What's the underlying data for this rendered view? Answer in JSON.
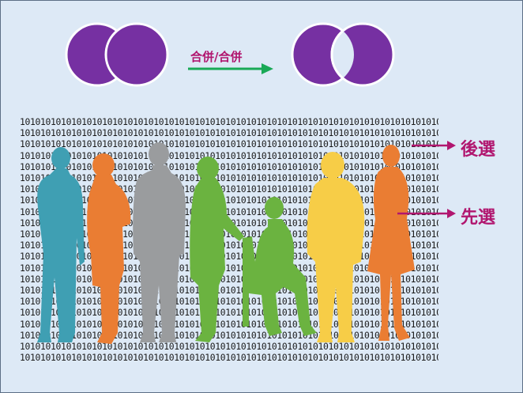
{
  "merge": {
    "label": "合併/合併"
  },
  "binary_row": "1010101010101010101010101010101010101010101010101010101010101010101010101010101010",
  "binary_rows": 22,
  "colors": {
    "circle_fill": "#7630a2",
    "circle_stroke": "#ffffff",
    "arrow_green": "#19a956",
    "label_magenta": "#b1166f",
    "background": "#dde9f6",
    "teal": "#3f9fb3",
    "orange": "#ea7d33",
    "gray": "#9a9c9e",
    "green": "#6bb340",
    "yellow": "#f7cd47"
  },
  "people": [
    {
      "name": "teal-person-silhouette",
      "color": "teal"
    },
    {
      "name": "orange-woman-silhouette",
      "color": "orange"
    },
    {
      "name": "gray-man-silhouette",
      "color": "gray"
    },
    {
      "name": "green-woman-silhouette",
      "color": "green"
    },
    {
      "name": "green-seated-man-silhouette",
      "color": "green"
    },
    {
      "name": "yellow-man-silhouette",
      "color": "yellow"
    },
    {
      "name": "orange-dress-woman-silhouette",
      "color": "orange"
    }
  ],
  "labels": {
    "post_selection": "後選",
    "pre_selection": "先選"
  }
}
